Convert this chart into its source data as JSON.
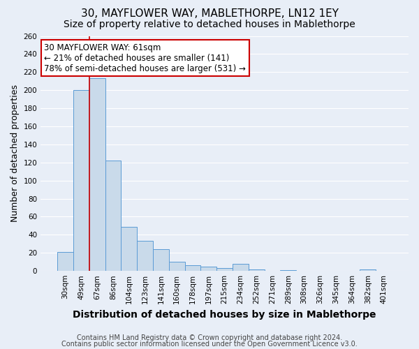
{
  "title": "30, MAYFLOWER WAY, MABLETHORPE, LN12 1EY",
  "subtitle": "Size of property relative to detached houses in Mablethorpe",
  "xlabel": "Distribution of detached houses by size in Mablethorpe",
  "ylabel": "Number of detached properties",
  "footnote1": "Contains HM Land Registry data © Crown copyright and database right 2024.",
  "footnote2": "Contains public sector information licensed under the Open Government Licence v3.0.",
  "categories": [
    "30sqm",
    "49sqm",
    "67sqm",
    "86sqm",
    "104sqm",
    "123sqm",
    "141sqm",
    "160sqm",
    "178sqm",
    "197sqm",
    "215sqm",
    "234sqm",
    "252sqm",
    "271sqm",
    "289sqm",
    "308sqm",
    "326sqm",
    "345sqm",
    "364sqm",
    "382sqm",
    "401sqm"
  ],
  "values": [
    21,
    200,
    213,
    122,
    49,
    33,
    24,
    10,
    6,
    5,
    3,
    8,
    2,
    0,
    1,
    0,
    0,
    0,
    0,
    2,
    0
  ],
  "bar_color": "#c9daea",
  "bar_edge_color": "#5b9bd5",
  "red_line_x": 1.5,
  "annotation_text": "30 MAYFLOWER WAY: 61sqm\n← 21% of detached houses are smaller (141)\n78% of semi-detached houses are larger (531) →",
  "annotation_box_color": "white",
  "annotation_box_edge_color": "#cc0000",
  "red_line_color": "#cc0000",
  "ylim": [
    0,
    260
  ],
  "yticks": [
    0,
    20,
    40,
    60,
    80,
    100,
    120,
    140,
    160,
    180,
    200,
    220,
    240,
    260
  ],
  "background_color": "#e8eef7",
  "grid_color": "white",
  "title_fontsize": 11,
  "subtitle_fontsize": 10,
  "xlabel_fontsize": 10,
  "ylabel_fontsize": 9,
  "tick_fontsize": 7.5,
  "annotation_fontsize": 8.5,
  "footnote_fontsize": 7
}
